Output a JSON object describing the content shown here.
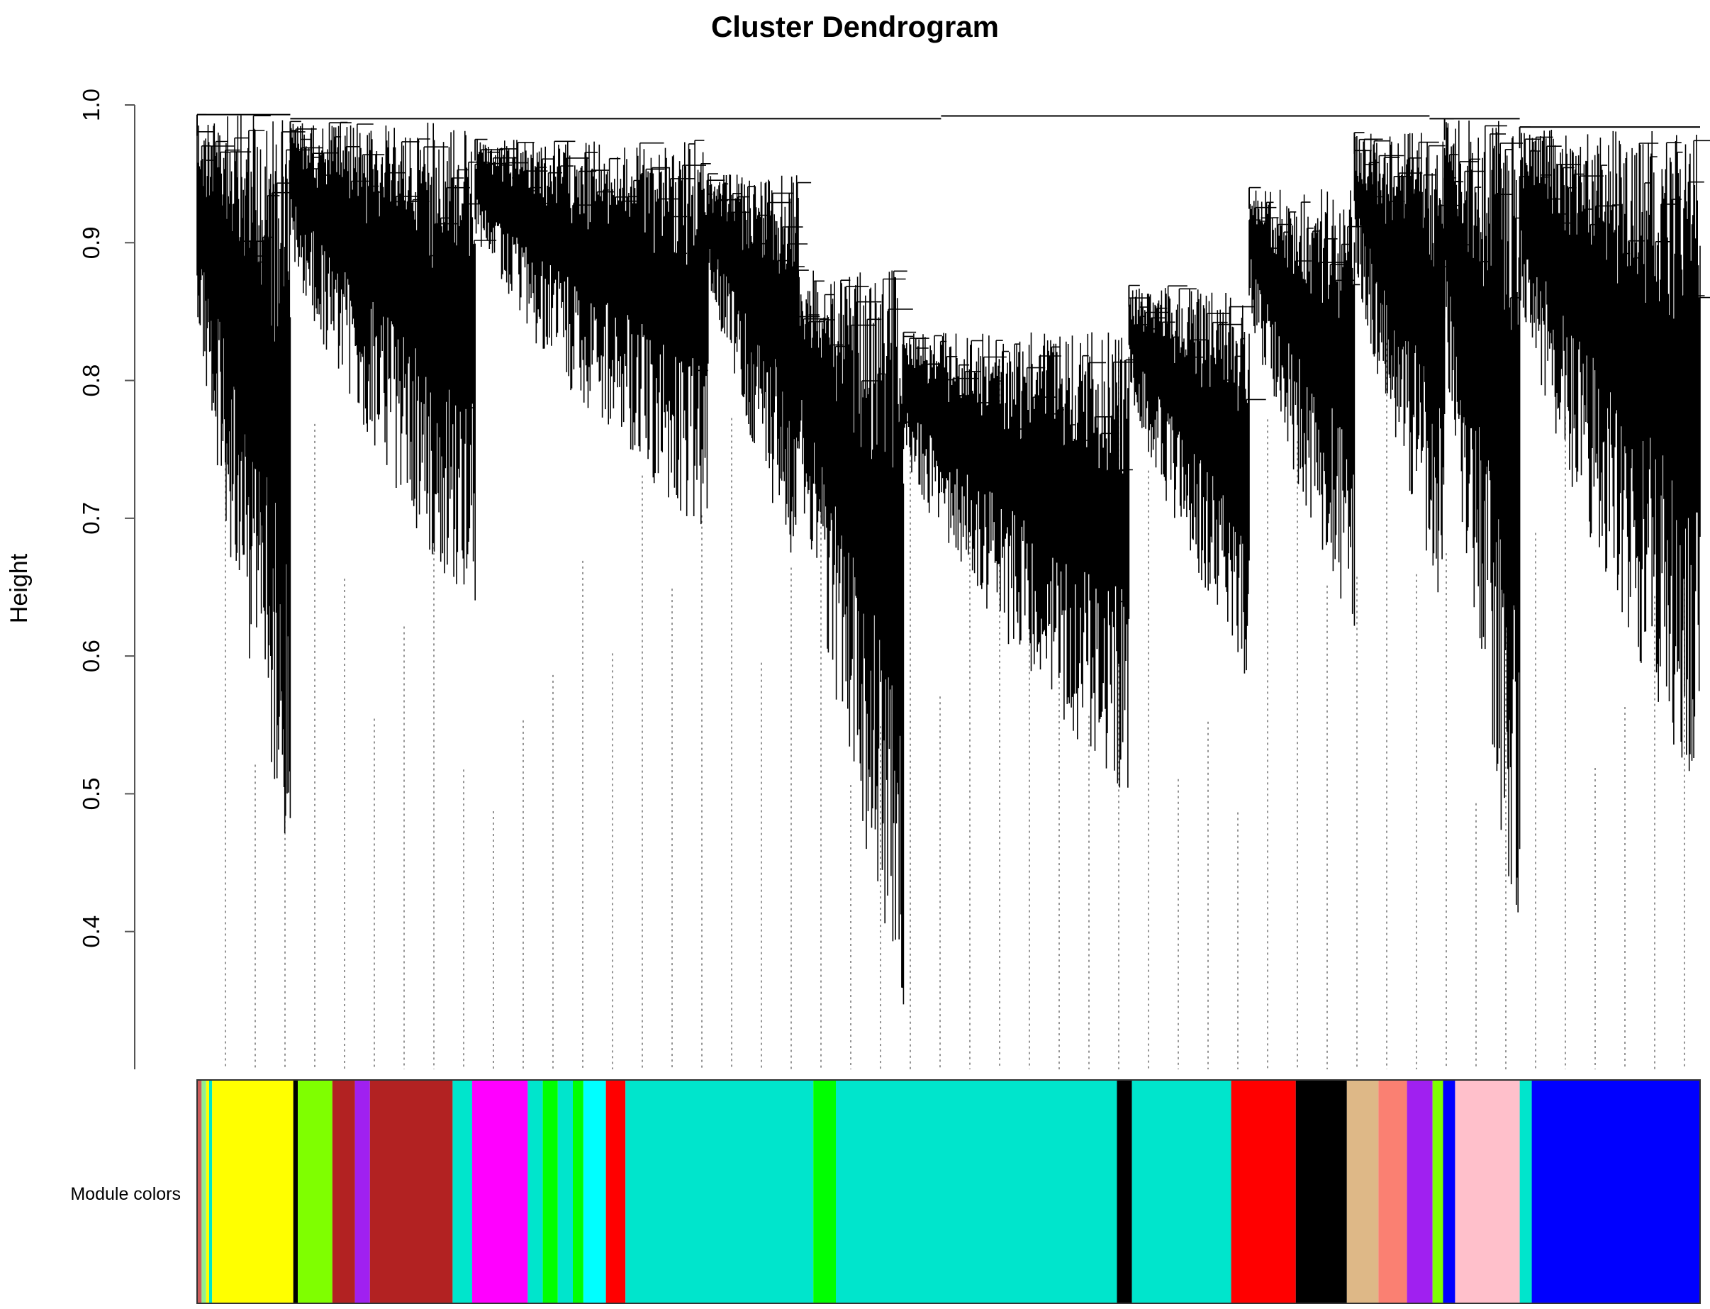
{
  "chart_data": {
    "type": "dendrogram",
    "title": "Cluster Dendrogram",
    "ylabel": "Height",
    "xlabel": "",
    "ylim": [
      0.3,
      1.0
    ],
    "yticks": [
      {
        "value": 0.4,
        "label": "0.4"
      },
      {
        "value": 0.5,
        "label": "0.5"
      },
      {
        "value": 0.6,
        "label": "0.6"
      },
      {
        "value": 0.7,
        "label": "0.7"
      },
      {
        "value": 0.8,
        "label": "0.8"
      },
      {
        "value": 0.9,
        "label": "0.9"
      },
      {
        "value": 1.0,
        "label": "1.0"
      }
    ],
    "grid": false,
    "color_bar_label": "Module colors",
    "top_merges": [
      {
        "from": 0.0,
        "to": 0.062,
        "height": 0.993
      },
      {
        "from": 0.062,
        "to": 0.495,
        "height": 0.99
      },
      {
        "from": 0.495,
        "to": 0.82,
        "height": 0.992
      },
      {
        "from": 0.82,
        "to": 0.88,
        "height": 0.99
      },
      {
        "from": 0.88,
        "to": 1.0,
        "height": 0.984
      }
    ],
    "clusters": [
      {
        "start": 0.0,
        "end": 0.062,
        "top": 0.993,
        "min": 0.44,
        "lines": 120
      },
      {
        "start": 0.062,
        "end": 0.185,
        "top": 0.988,
        "min": 0.62,
        "lines": 200
      },
      {
        "start": 0.185,
        "end": 0.34,
        "top": 0.975,
        "min": 0.68,
        "lines": 230
      },
      {
        "start": 0.34,
        "end": 0.4,
        "top": 0.95,
        "min": 0.66,
        "lines": 110
      },
      {
        "start": 0.4,
        "end": 0.47,
        "top": 0.88,
        "min": 0.34,
        "lines": 120
      },
      {
        "start": 0.47,
        "end": 0.62,
        "top": 0.835,
        "min": 0.49,
        "lines": 220
      },
      {
        "start": 0.62,
        "end": 0.7,
        "top": 0.869,
        "min": 0.58,
        "lines": 130
      },
      {
        "start": 0.7,
        "end": 0.77,
        "top": 0.94,
        "min": 0.61,
        "lines": 110
      },
      {
        "start": 0.77,
        "end": 0.83,
        "top": 0.98,
        "min": 0.63,
        "lines": 110
      },
      {
        "start": 0.83,
        "end": 0.88,
        "top": 0.99,
        "min": 0.38,
        "lines": 90
      },
      {
        "start": 0.88,
        "end": 1.0,
        "top": 0.984,
        "min": 0.49,
        "lines": 200
      }
    ],
    "module_colors": [
      {
        "color": "#cd5c5c",
        "start": 0.0,
        "end": 0.003
      },
      {
        "color": "#90ee90",
        "start": 0.003,
        "end": 0.006
      },
      {
        "color": "#ffff00",
        "start": 0.006,
        "end": 0.008
      },
      {
        "color": "#00e5cc",
        "start": 0.008,
        "end": 0.01
      },
      {
        "color": "#ffff00",
        "start": 0.01,
        "end": 0.064
      },
      {
        "color": "#000000",
        "start": 0.064,
        "end": 0.067
      },
      {
        "color": "#7fff00",
        "start": 0.067,
        "end": 0.09
      },
      {
        "color": "#b22222",
        "start": 0.09,
        "end": 0.105
      },
      {
        "color": "#a020f0",
        "start": 0.105,
        "end": 0.115
      },
      {
        "color": "#b22222",
        "start": 0.115,
        "end": 0.17
      },
      {
        "color": "#00e5cc",
        "start": 0.17,
        "end": 0.183
      },
      {
        "color": "#ff00ff",
        "start": 0.183,
        "end": 0.22
      },
      {
        "color": "#00e5cc",
        "start": 0.22,
        "end": 0.23
      },
      {
        "color": "#00ff00",
        "start": 0.23,
        "end": 0.24
      },
      {
        "color": "#00e5cc",
        "start": 0.24,
        "end": 0.25
      },
      {
        "color": "#00ff00",
        "start": 0.25,
        "end": 0.257
      },
      {
        "color": "#00ffff",
        "start": 0.257,
        "end": 0.272
      },
      {
        "color": "#ff0000",
        "start": 0.272,
        "end": 0.285
      },
      {
        "color": "#00e5cc",
        "start": 0.285,
        "end": 0.41
      },
      {
        "color": "#00ff00",
        "start": 0.41,
        "end": 0.425
      },
      {
        "color": "#00e5cc",
        "start": 0.425,
        "end": 0.612
      },
      {
        "color": "#000000",
        "start": 0.612,
        "end": 0.622
      },
      {
        "color": "#00e5cc",
        "start": 0.622,
        "end": 0.688
      },
      {
        "color": "#ff0000",
        "start": 0.688,
        "end": 0.731
      },
      {
        "color": "#000000",
        "start": 0.731,
        "end": 0.765
      },
      {
        "color": "#deb887",
        "start": 0.765,
        "end": 0.786
      },
      {
        "color": "#fa8072",
        "start": 0.786,
        "end": 0.805
      },
      {
        "color": "#a020f0",
        "start": 0.805,
        "end": 0.822
      },
      {
        "color": "#7fff00",
        "start": 0.822,
        "end": 0.829
      },
      {
        "color": "#0000ff",
        "start": 0.829,
        "end": 0.837
      },
      {
        "color": "#ffc0cb",
        "start": 0.837,
        "end": 0.88
      },
      {
        "color": "#00e5cc",
        "start": 0.88,
        "end": 0.888
      },
      {
        "color": "#0000ff",
        "start": 0.888,
        "end": 1.0
      }
    ]
  }
}
